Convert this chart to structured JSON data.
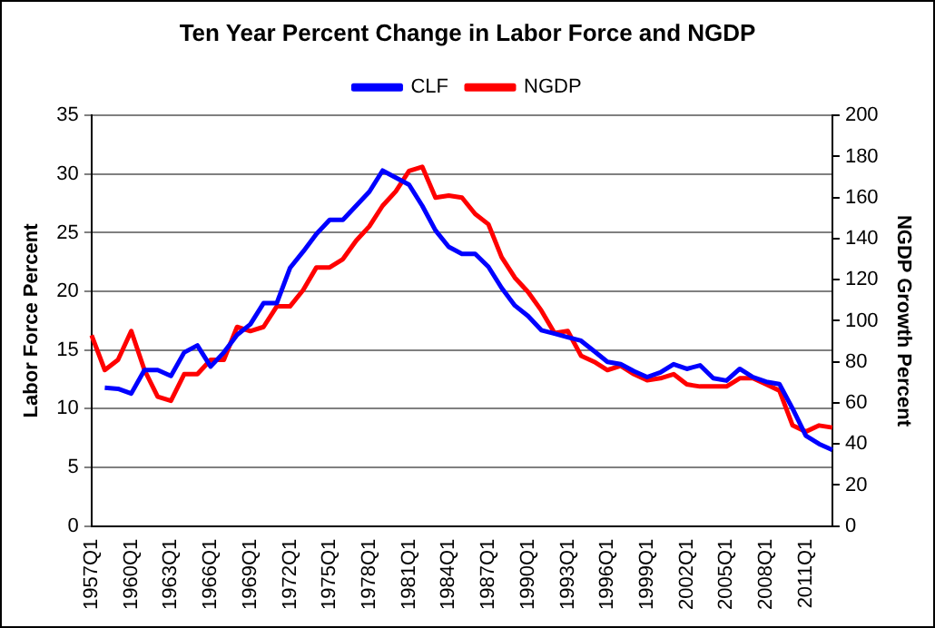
{
  "chart_data": {
    "type": "line",
    "title": "Ten Year Percent Change in Labor Force and NGDP",
    "ylabel": "Labor Force Percent",
    "y2label": "NGDP Growth Percent",
    "categories": [
      "1957Q1",
      null,
      null,
      "1960Q1",
      null,
      null,
      "1963Q1",
      null,
      null,
      "1966Q1",
      null,
      null,
      "1969Q1",
      null,
      null,
      "1972Q1",
      null,
      null,
      "1975Q1",
      null,
      null,
      "1978Q1",
      null,
      null,
      "1981Q1",
      null,
      null,
      "1984Q1",
      null,
      null,
      "1987Q1",
      null,
      null,
      "1990Q1",
      null,
      null,
      "1993Q1",
      null,
      null,
      "1996Q1",
      null,
      null,
      "1999Q1",
      null,
      null,
      "2002Q1",
      null,
      null,
      "2005Q1",
      null,
      null,
      "2008Q1",
      null,
      null,
      "2011Q1",
      null,
      null
    ],
    "series": [
      {
        "name": "CLF",
        "color": "#0000ff",
        "values": [
          null,
          11.8,
          11.7,
          11.3,
          13.3,
          13.3,
          12.8,
          14.8,
          15.4,
          13.6,
          14.8,
          16.3,
          17.2,
          19.0,
          19.0,
          22.0,
          23.4,
          24.9,
          26.1,
          26.1,
          27.3,
          28.5,
          30.3,
          29.7,
          29.1,
          27.3,
          25.2,
          23.8,
          23.2,
          23.2,
          22.1,
          20.3,
          18.8,
          17.9,
          16.7,
          16.4,
          16.1,
          15.8,
          14.9,
          14.0,
          13.8,
          13.2,
          12.7,
          13.1,
          13.8,
          13.4,
          13.7,
          12.6,
          12.4,
          13.4,
          12.7,
          12.3,
          12.1,
          10.0,
          7.7,
          7.0,
          6.5
        ]
      },
      {
        "name": "NGDP",
        "color": "#ff0000",
        "axis": "y2",
        "values": [
          93,
          76,
          81,
          95,
          76,
          63,
          61,
          74,
          74,
          81,
          81,
          97,
          95,
          97,
          107,
          107,
          115,
          126,
          126,
          130,
          139,
          146,
          156,
          163,
          173,
          175,
          160,
          161,
          160,
          152,
          147,
          131,
          121,
          114,
          105,
          94,
          95,
          83,
          80,
          76,
          78,
          74,
          71,
          72,
          74,
          69,
          68,
          68,
          68,
          72,
          72,
          69,
          66,
          49,
          46,
          49,
          48
        ]
      }
    ],
    "ylim": [
      0,
      35
    ],
    "yticks": [
      0,
      5,
      10,
      15,
      20,
      25,
      30,
      35
    ],
    "y2lim": [
      0,
      200
    ],
    "y2ticks": [
      0,
      20,
      40,
      60,
      80,
      100,
      120,
      140,
      160,
      180,
      200
    ],
    "grid": "y",
    "legend": "top",
    "marker": "none",
    "line_style": "solid"
  }
}
